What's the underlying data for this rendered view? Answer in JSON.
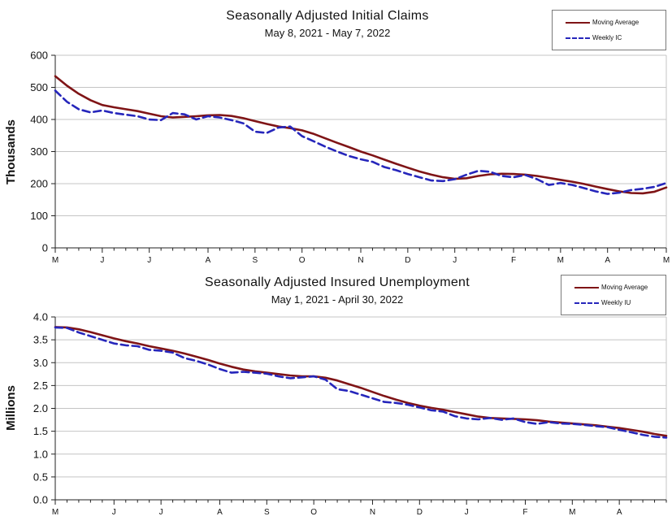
{
  "page": {
    "background": "#ffffff"
  },
  "chart_data": [
    {
      "id": "initial-claims",
      "type": "line",
      "title": "Seasonally Adjusted Initial Claims",
      "subtitle": "May 8, 2021 - May 7, 2022",
      "ylabel": "Thousands",
      "ylim": [
        0,
        600
      ],
      "ytick_step": 100,
      "ytick_labels": [
        "0",
        "100",
        "200",
        "300",
        "400",
        "500",
        "600"
      ],
      "grid": true,
      "legend_position": "top-right",
      "x_axis": {
        "unit": "week",
        "weeks": 53,
        "month_labels": [
          "M",
          "J",
          "J",
          "A",
          "S",
          "O",
          "N",
          "D",
          "J",
          "F",
          "M",
          "A",
          "M"
        ],
        "month_week_index": [
          0,
          4,
          8,
          13,
          17,
          21,
          26,
          30,
          34,
          39,
          43,
          47,
          52
        ]
      },
      "series": [
        {
          "name": "Moving Average",
          "color": "#7f1416",
          "style": "solid",
          "values": [
            535,
            505,
            480,
            460,
            445,
            438,
            432,
            426,
            418,
            410,
            406,
            408,
            410,
            413,
            414,
            411,
            404,
            395,
            386,
            378,
            373,
            366,
            355,
            341,
            327,
            314,
            300,
            288,
            275,
            262,
            250,
            238,
            228,
            220,
            215,
            217,
            224,
            229,
            231,
            230,
            228,
            224,
            218,
            212,
            206,
            199,
            191,
            183,
            176,
            171,
            170,
            175,
            188
          ]
        },
        {
          "name": "Weekly IC",
          "color": "#2626bb",
          "style": "dashed",
          "values": [
            490,
            455,
            432,
            422,
            428,
            420,
            415,
            410,
            400,
            398,
            420,
            416,
            400,
            410,
            406,
            398,
            388,
            362,
            358,
            375,
            378,
            348,
            332,
            315,
            300,
            286,
            276,
            268,
            252,
            242,
            230,
            220,
            210,
            208,
            214,
            228,
            240,
            237,
            224,
            220,
            227,
            214,
            196,
            202,
            196,
            186,
            176,
            168,
            172,
            180,
            184,
            190,
            202
          ]
        }
      ]
    },
    {
      "id": "insured-unemployment",
      "type": "line",
      "title": "Seasonally Adjusted Insured Unemployment",
      "subtitle": "May 1, 2021 - April 30, 2022",
      "ylabel": "Millions",
      "ylim": [
        0,
        4
      ],
      "ytick_step": 0.5,
      "ytick_labels": [
        "0.0",
        "0.5",
        "1.0",
        "1.5",
        "2.0",
        "2.5",
        "3.0",
        "3.5",
        "4.0"
      ],
      "grid": true,
      "legend_position": "top-right",
      "x_axis": {
        "unit": "week",
        "weeks": 53,
        "month_labels": [
          "M",
          "J",
          "J",
          "A",
          "S",
          "O",
          "N",
          "D",
          "J",
          "F",
          "M",
          "A"
        ],
        "month_week_index": [
          0,
          5,
          9,
          14,
          18,
          22,
          27,
          31,
          35,
          40,
          44,
          48
        ]
      },
      "series": [
        {
          "name": "Moving Average",
          "color": "#7f1416",
          "style": "solid",
          "values": [
            3.78,
            3.77,
            3.73,
            3.67,
            3.6,
            3.53,
            3.47,
            3.42,
            3.36,
            3.31,
            3.26,
            3.2,
            3.13,
            3.06,
            2.98,
            2.91,
            2.85,
            2.81,
            2.78,
            2.75,
            2.72,
            2.7,
            2.7,
            2.67,
            2.61,
            2.53,
            2.45,
            2.36,
            2.27,
            2.19,
            2.12,
            2.06,
            2.01,
            1.97,
            1.92,
            1.87,
            1.82,
            1.79,
            1.78,
            1.77,
            1.76,
            1.74,
            1.71,
            1.69,
            1.67,
            1.65,
            1.63,
            1.6,
            1.57,
            1.53,
            1.49,
            1.44,
            1.4
          ]
        },
        {
          "name": "Weekly IU",
          "color": "#2626bb",
          "style": "dashed",
          "values": [
            3.77,
            3.76,
            3.66,
            3.58,
            3.5,
            3.42,
            3.38,
            3.36,
            3.28,
            3.26,
            3.22,
            3.1,
            3.04,
            2.96,
            2.86,
            2.78,
            2.8,
            2.78,
            2.76,
            2.7,
            2.66,
            2.68,
            2.7,
            2.63,
            2.42,
            2.38,
            2.3,
            2.22,
            2.14,
            2.12,
            2.08,
            2.02,
            1.96,
            1.93,
            1.83,
            1.78,
            1.76,
            1.79,
            1.75,
            1.78,
            1.7,
            1.66,
            1.7,
            1.67,
            1.66,
            1.64,
            1.61,
            1.59,
            1.53,
            1.48,
            1.42,
            1.38,
            1.36
          ]
        }
      ]
    }
  ]
}
